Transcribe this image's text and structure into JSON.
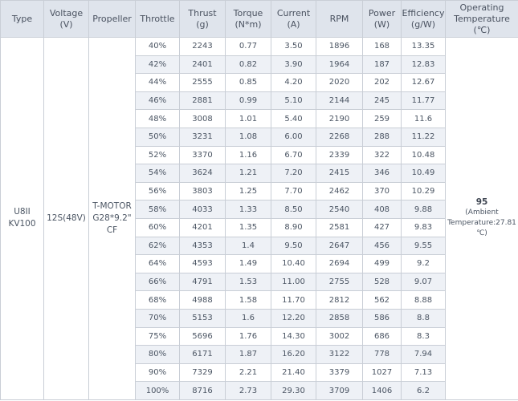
{
  "headers": [
    {
      "line1": "Type",
      "line2": ""
    },
    {
      "line1": "Voltage",
      "line2": "(V)"
    },
    {
      "line1": "Propeller",
      "line2": ""
    },
    {
      "line1": "Throttle",
      "line2": ""
    },
    {
      "line1": "Thrust",
      "line2": "(g)"
    },
    {
      "line1": "Torque",
      "line2": "(N*m)"
    },
    {
      "line1": "Current",
      "line2": "(A)"
    },
    {
      "line1": "RPM",
      "line2": ""
    },
    {
      "line1": "Power",
      "line2": "(W)"
    },
    {
      "line1": "Efficiency",
      "line2": "(g/W)"
    },
    {
      "line1": "Operating",
      "line2": "Temperature",
      "line3": "(℃)"
    }
  ],
  "type": {
    "line1": "U8II",
    "line2": "KV100"
  },
  "voltage": "12S(48V)",
  "propeller": {
    "line1": "T-MOTOR",
    "line2": "G28*9.2\" CF"
  },
  "temperature": {
    "value": "95",
    "note_line1": "(Ambient",
    "note_line2": "Temperature:27.81",
    "note_line3": "℃)"
  },
  "rows": [
    [
      "40%",
      "2243",
      "0.77",
      "3.50",
      "1896",
      "168",
      "13.35"
    ],
    [
      "42%",
      "2401",
      "0.82",
      "3.90",
      "1964",
      "187",
      "12.83"
    ],
    [
      "44%",
      "2555",
      "0.85",
      "4.20",
      "2020",
      "202",
      "12.67"
    ],
    [
      "46%",
      "2881",
      "0.99",
      "5.10",
      "2144",
      "245",
      "11.77"
    ],
    [
      "48%",
      "3008",
      "1.01",
      "5.40",
      "2190",
      "259",
      "11.6"
    ],
    [
      "50%",
      "3231",
      "1.08",
      "6.00",
      "2268",
      "288",
      "11.22"
    ],
    [
      "52%",
      "3370",
      "1.16",
      "6.70",
      "2339",
      "322",
      "10.48"
    ],
    [
      "54%",
      "3624",
      "1.21",
      "7.20",
      "2415",
      "346",
      "10.49"
    ],
    [
      "56%",
      "3803",
      "1.25",
      "7.70",
      "2462",
      "370",
      "10.29"
    ],
    [
      "58%",
      "4033",
      "1.33",
      "8.50",
      "2540",
      "408",
      "9.88"
    ],
    [
      "60%",
      "4201",
      "1.35",
      "8.90",
      "2581",
      "427",
      "9.83"
    ],
    [
      "62%",
      "4353",
      "1.4",
      "9.50",
      "2647",
      "456",
      "9.55"
    ],
    [
      "64%",
      "4593",
      "1.49",
      "10.40",
      "2694",
      "499",
      "9.2"
    ],
    [
      "66%",
      "4791",
      "1.53",
      "11.00",
      "2755",
      "528",
      "9.07"
    ],
    [
      "68%",
      "4988",
      "1.58",
      "11.70",
      "2812",
      "562",
      "8.88"
    ],
    [
      "70%",
      "5153",
      "1.6",
      "12.20",
      "2858",
      "586",
      "8.8"
    ],
    [
      "75%",
      "5696",
      "1.76",
      "14.30",
      "3002",
      "686",
      "8.3"
    ],
    [
      "80%",
      "6171",
      "1.87",
      "16.20",
      "3122",
      "778",
      "7.94"
    ],
    [
      "90%",
      "7329",
      "2.21",
      "21.40",
      "3379",
      "1027",
      "7.13"
    ],
    [
      "100%",
      "8716",
      "2.73",
      "29.30",
      "3709",
      "1406",
      "6.2"
    ]
  ]
}
